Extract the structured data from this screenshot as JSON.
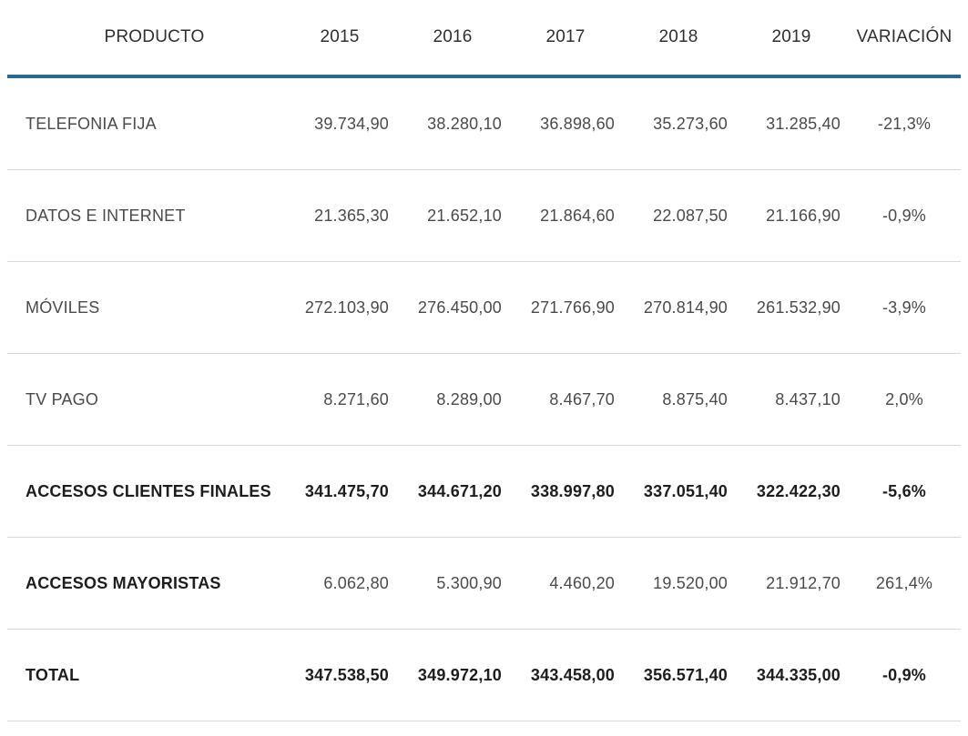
{
  "accent_color": "#2b6a8d",
  "separator_color": "#d9d9d9",
  "table": {
    "columns": [
      "PRODUCTO",
      "2015",
      "2016",
      "2017",
      "2018",
      "2019",
      "VARIACIÓN"
    ],
    "rows": [
      {
        "product": "TELEFONIA FIJA",
        "values": [
          "39.734,90",
          "38.280,10",
          "36.898,60",
          "35.273,60",
          "31.285,40"
        ],
        "variation": "-21,3%",
        "emphasis": "none"
      },
      {
        "product": "DATOS E INTERNET",
        "values": [
          "21.365,30",
          "21.652,10",
          "21.864,60",
          "22.087,50",
          "21.166,90"
        ],
        "variation": "-0,9%",
        "emphasis": "none"
      },
      {
        "product": "MÓVILES",
        "values": [
          "272.103,90",
          "276.450,00",
          "271.766,90",
          "270.814,90",
          "261.532,90"
        ],
        "variation": "-3,9%",
        "emphasis": "none"
      },
      {
        "product": "TV PAGO",
        "values": [
          "8.271,60",
          "8.289,00",
          "8.467,70",
          "8.875,40",
          "8.437,10"
        ],
        "variation": "2,0%",
        "emphasis": "none"
      },
      {
        "product": "ACCESOS CLIENTES FINALES",
        "values": [
          "341.475,70",
          "344.671,20",
          "338.997,80",
          "337.051,40",
          "322.422,30"
        ],
        "variation": "-5,6%",
        "emphasis": "all"
      },
      {
        "product": "ACCESOS MAYORISTAS",
        "values": [
          "6.062,80",
          "5.300,90",
          "4.460,20",
          "19.520,00",
          "21.912,70"
        ],
        "variation": "261,4%",
        "emphasis": "label"
      },
      {
        "product": "TOTAL",
        "values": [
          "347.538,50",
          "349.972,10",
          "343.458,00",
          "356.571,40",
          "344.335,00"
        ],
        "variation": "-0,9%",
        "emphasis": "all"
      }
    ]
  },
  "chart_data": {
    "type": "table",
    "title": "",
    "columns": [
      "PRODUCTO",
      "2015",
      "2016",
      "2017",
      "2018",
      "2019",
      "VARIACIÓN"
    ],
    "rows": [
      {
        "producto": "TELEFONIA FIJA",
        "2015": 39734.9,
        "2016": 38280.1,
        "2017": 36898.6,
        "2018": 35273.6,
        "2019": 31285.4,
        "variacion_pct": -21.3
      },
      {
        "producto": "DATOS E INTERNET",
        "2015": 21365.3,
        "2016": 21652.1,
        "2017": 21864.6,
        "2018": 22087.5,
        "2019": 21166.9,
        "variacion_pct": -0.9
      },
      {
        "producto": "MÓVILES",
        "2015": 272103.9,
        "2016": 276450.0,
        "2017": 271766.9,
        "2018": 270814.9,
        "2019": 261532.9,
        "variacion_pct": -3.9
      },
      {
        "producto": "TV PAGO",
        "2015": 8271.6,
        "2016": 8289.0,
        "2017": 8467.7,
        "2018": 8875.4,
        "2019": 8437.1,
        "variacion_pct": 2.0
      },
      {
        "producto": "ACCESOS CLIENTES FINALES",
        "2015": 341475.7,
        "2016": 344671.2,
        "2017": 338997.8,
        "2018": 337051.4,
        "2019": 322422.3,
        "variacion_pct": -5.6
      },
      {
        "producto": "ACCESOS MAYORISTAS",
        "2015": 6062.8,
        "2016": 5300.9,
        "2017": 4460.2,
        "2018": 19520.0,
        "2019": 21912.7,
        "variacion_pct": 261.4
      },
      {
        "producto": "TOTAL",
        "2015": 347538.5,
        "2016": 349972.1,
        "2017": 343458.0,
        "2018": 356571.4,
        "2019": 344335.0,
        "variacion_pct": -0.9
      }
    ],
    "number_format": "es-ES (dot thousands, comma decimals)"
  }
}
